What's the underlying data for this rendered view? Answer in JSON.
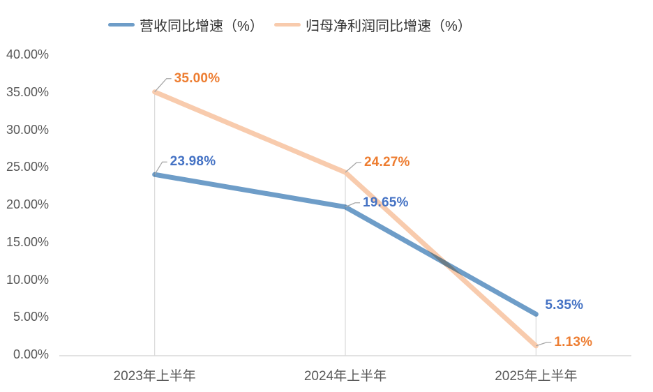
{
  "chart_data": {
    "type": "line",
    "title": "",
    "categories": [
      "2023年上半年",
      "2024年上半年",
      "2025年上半年"
    ],
    "series": [
      {
        "name": "营收同比增速（%）",
        "color": "#6E9DC8",
        "label_color": "#4472C4",
        "values": [
          23.98,
          19.65,
          5.35
        ],
        "labels": [
          "23.98%",
          "19.65%",
          "5.35%"
        ]
      },
      {
        "name": "归母净利润同比增速（%）",
        "color": "#F8CBAD",
        "label_color": "#ED7D31",
        "values": [
          35.0,
          24.27,
          1.13
        ],
        "labels": [
          "35.00%",
          "24.27%",
          "1.13%"
        ]
      }
    ],
    "y_ticks": [
      {
        "value": 40,
        "label": "40.00%"
      },
      {
        "value": 35,
        "label": "35.00%"
      },
      {
        "value": 30,
        "label": "30.00%"
      },
      {
        "value": 25,
        "label": "25.00%"
      },
      {
        "value": 20,
        "label": "20.00%"
      },
      {
        "value": 15,
        "label": "15.00%"
      },
      {
        "value": 10,
        "label": "10.00%"
      },
      {
        "value": 5,
        "label": "5.00%"
      },
      {
        "value": 0,
        "label": "0.00%"
      }
    ],
    "ylim": [
      0,
      40
    ],
    "xlabel": "",
    "ylabel": "",
    "legend_position": "top",
    "grid": "no horizontal gridlines; vertical drop lines at each category",
    "colors": {
      "axis_line": "#D9D9D9",
      "drop_line": "#D9D9D9",
      "leader_line": "#A6A6A6",
      "tick_text": "#595959",
      "legend_text": "#333333",
      "background": "#FFFFFF"
    }
  }
}
